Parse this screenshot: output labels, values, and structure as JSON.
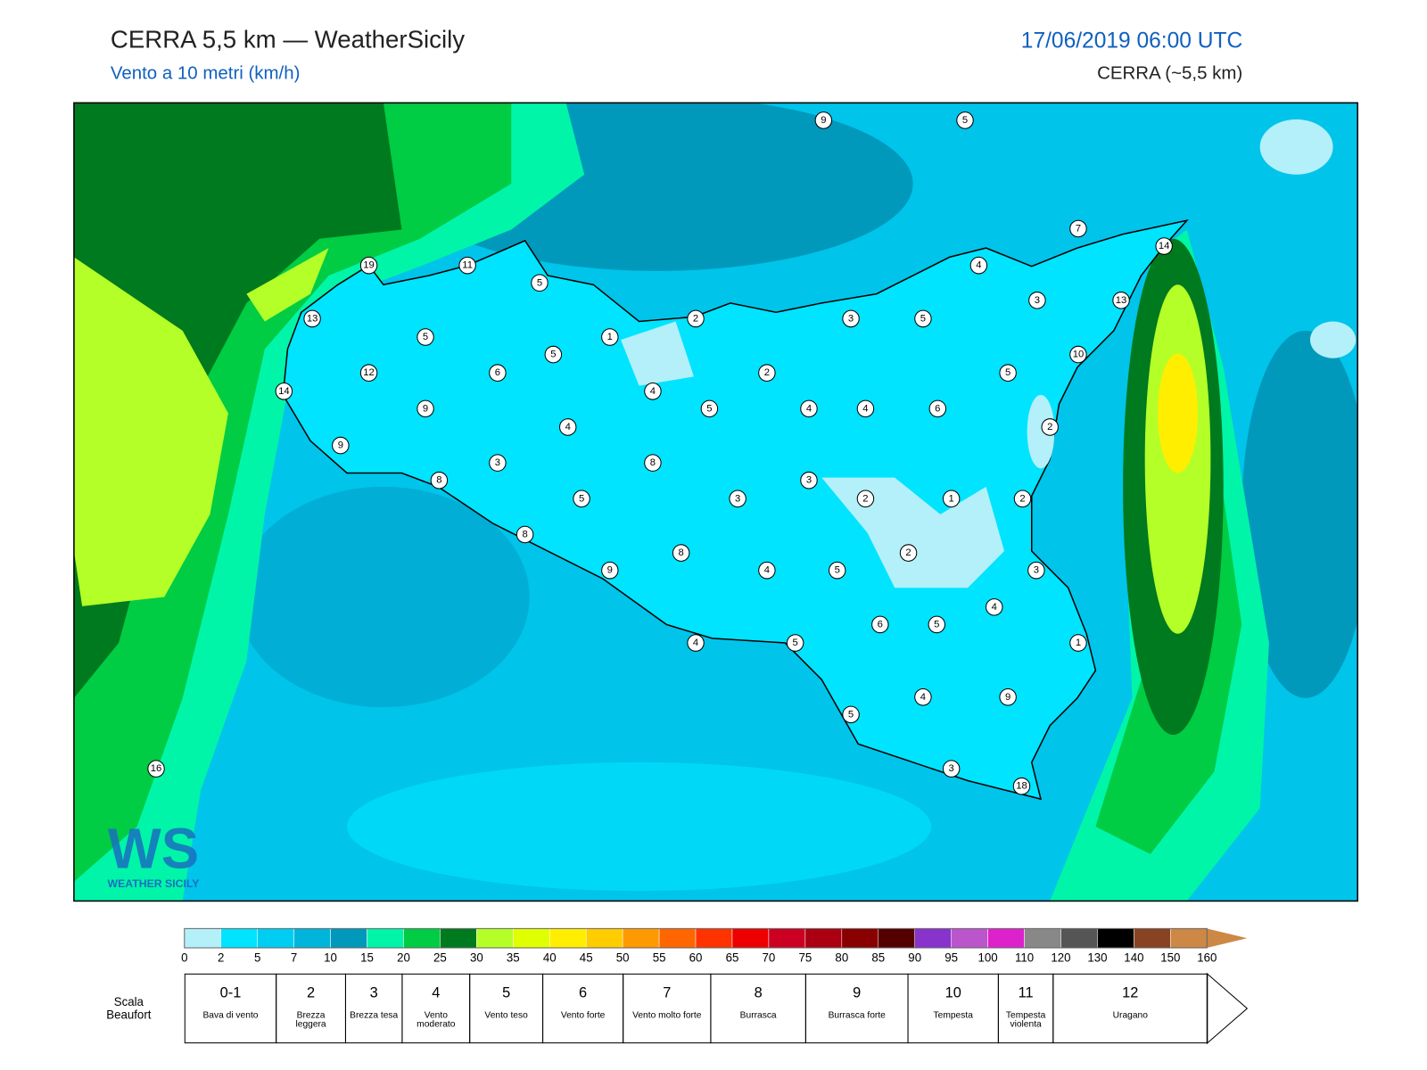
{
  "header": {
    "title": "CERRA 5,5 km — WeatherSicily",
    "subtitle": "Vento a 10 metri (km/h)",
    "date": "17/06/2019 06:00 UTC",
    "model": "CERRA (~5,5 km)"
  },
  "map": {
    "stations": [
      9,
      5,
      7,
      14,
      19,
      11,
      5,
      4,
      3,
      13,
      13,
      2,
      3,
      5,
      5,
      1,
      5,
      10,
      12,
      6,
      2,
      5,
      14,
      4,
      9,
      5,
      4,
      4,
      6,
      4,
      2,
      9,
      3,
      8,
      8,
      3,
      5,
      3,
      2,
      1,
      2,
      8,
      2,
      8,
      9,
      4,
      5,
      3,
      4,
      6,
      5,
      4,
      5,
      1,
      4,
      9,
      5,
      3,
      18,
      16
    ],
    "logo": {
      "mark": "WS",
      "name": "WEATHER SICILY"
    }
  },
  "colorbar": {
    "ticks": [
      0,
      2,
      5,
      7,
      10,
      15,
      20,
      25,
      30,
      35,
      40,
      45,
      50,
      55,
      60,
      65,
      70,
      75,
      80,
      85,
      90,
      95,
      100,
      110,
      120,
      130,
      140,
      150,
      160
    ],
    "colors": [
      "#b4f0fa",
      "#00e4ff",
      "#00cdf2",
      "#00b5dc",
      "#0099bb",
      "#00f5a8",
      "#00cc44",
      "#007a1e",
      "#b4ff28",
      "#e0ff00",
      "#ffee00",
      "#ffcc00",
      "#ff9900",
      "#ff6600",
      "#ff3300",
      "#ee0000",
      "#cc0022",
      "#aa0011",
      "#880000",
      "#550000",
      "#8833cc",
      "#bb55cc",
      "#dd22cc",
      "#888888",
      "#555555",
      "#000000",
      "#884422",
      "#cc8844"
    ]
  },
  "beaufort": {
    "label": "Scala Beaufort",
    "levels": [
      {
        "force": "0-1",
        "name": "Bava di vento"
      },
      {
        "force": "2",
        "name": "Brezza leggera"
      },
      {
        "force": "3",
        "name": "Brezza tesa"
      },
      {
        "force": "4",
        "name": "Vento moderato"
      },
      {
        "force": "5",
        "name": "Vento teso"
      },
      {
        "force": "6",
        "name": "Vento forte"
      },
      {
        "force": "7",
        "name": "Vento molto forte"
      },
      {
        "force": "8",
        "name": "Burrasca"
      },
      {
        "force": "9",
        "name": "Burrasca forte"
      },
      {
        "force": "10",
        "name": "Tempesta"
      },
      {
        "force": "11",
        "name": "Tempesta violenta"
      },
      {
        "force": "12",
        "name": "Uragano"
      }
    ]
  }
}
